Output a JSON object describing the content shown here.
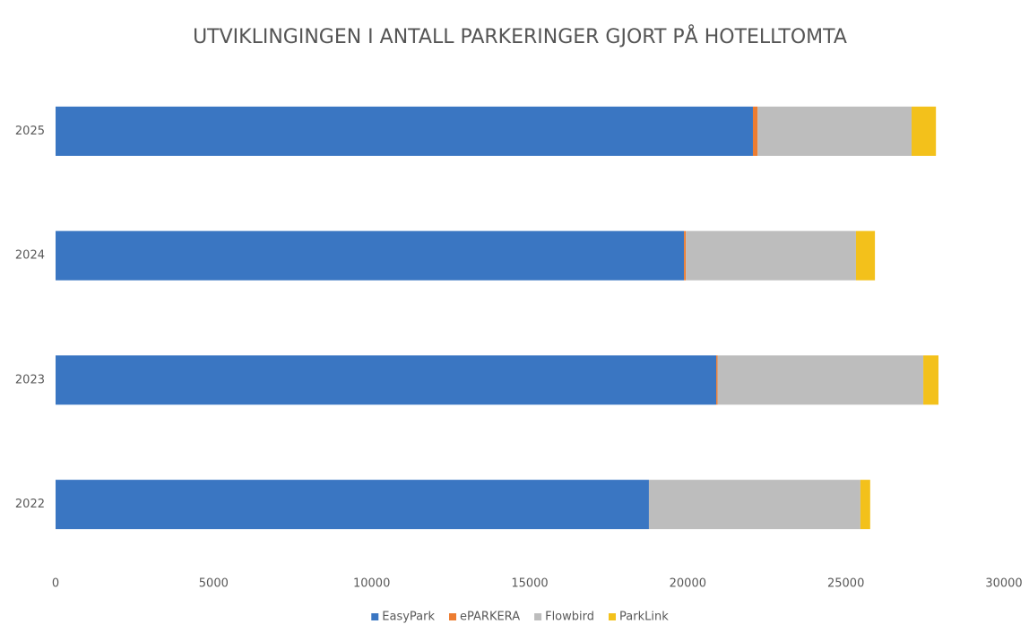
{
  "chart_data": {
    "type": "stacked_bar_horizontal",
    "title": "UTVIKLINGINGEN I ANTALL PARKERINGER GJORT PÅ HOTELLTOMTA",
    "categories": [
      "2022",
      "2023",
      "2024",
      "2025"
    ],
    "series": [
      {
        "name": "EasyPark",
        "color": "#3a76c2",
        "values": [
          18770,
          20900,
          19880,
          22060
        ]
      },
      {
        "name": "ePARKERA",
        "color": "#ed7d31",
        "values": [
          0,
          40,
          60,
          150
        ]
      },
      {
        "name": "Flowbird",
        "color": "#bdbdbd",
        "values": [
          6690,
          6510,
          5380,
          4870
        ]
      },
      {
        "name": "ParkLink",
        "color": "#f3c11b",
        "values": [
          310,
          480,
          600,
          770
        ]
      }
    ],
    "xlim": [
      0,
      30000
    ],
    "xticks": [
      0,
      5000,
      10000,
      15000,
      20000,
      25000,
      30000
    ],
    "grid": false,
    "legend": "bottom"
  }
}
